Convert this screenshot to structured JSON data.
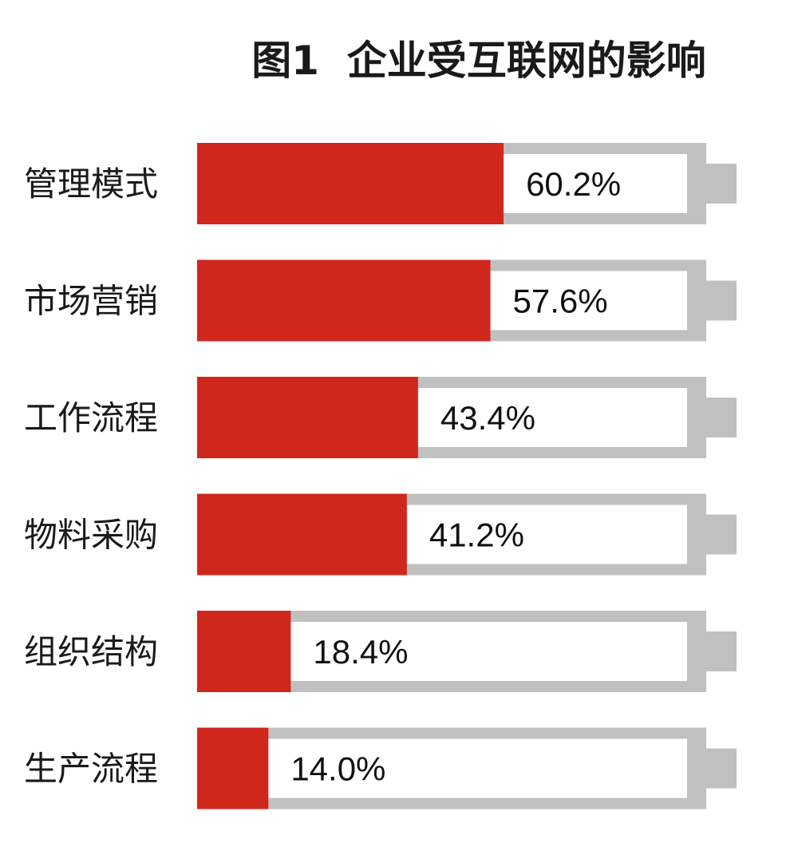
{
  "chart_data": {
    "type": "bar",
    "title": "图1  企业受互联网的影响",
    "categories": [
      "管理模式",
      "市场营销",
      "工作流程",
      "物料采购",
      "组织结构",
      "生产流程"
    ],
    "values": [
      60.2,
      57.6,
      43.4,
      41.2,
      18.4,
      14.0
    ],
    "value_labels": [
      "60.2%",
      "57.6%",
      "43.4%",
      "41.2%",
      "18.4%",
      "14.0%"
    ],
    "unit": "%",
    "xlim": [
      0,
      100
    ],
    "orientation": "horizontal",
    "style": "battery",
    "legend": "none",
    "grid": false,
    "colors": {
      "fill": "#d0271d",
      "frame": "#c0c0c0",
      "background": "#ffffff",
      "text": "#1a1a1a"
    }
  }
}
